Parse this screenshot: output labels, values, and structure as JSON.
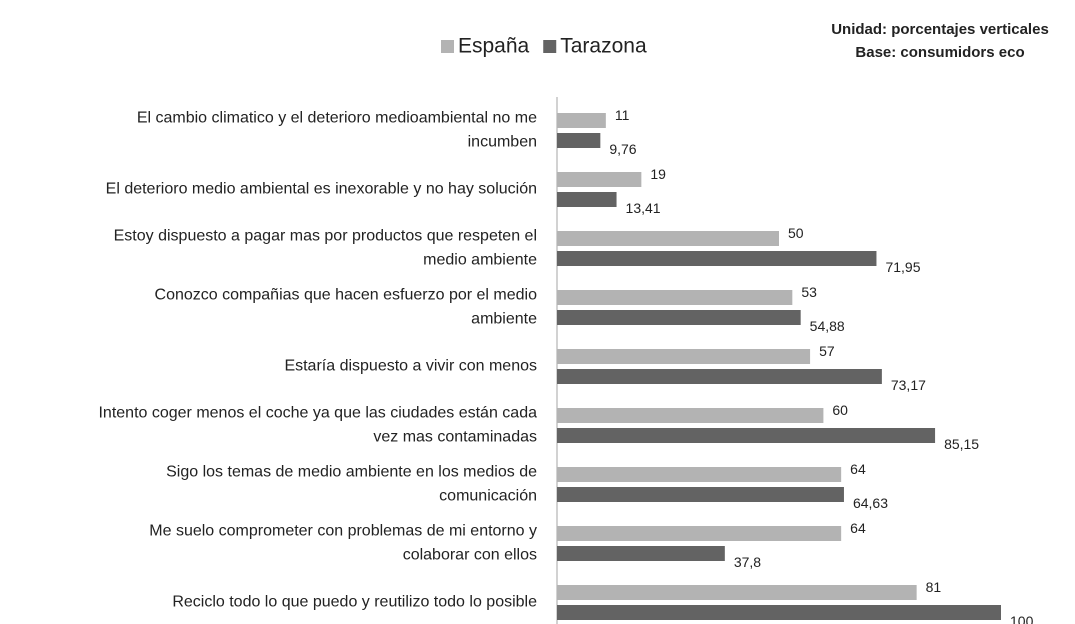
{
  "chart_data": {
    "type": "bar",
    "orientation": "horizontal",
    "annotations": [
      "Unidad: porcentajes verticales",
      "Base: consumidors eco"
    ],
    "categories": [
      [
        "El cambio climatico y el deterioro medioambiental no me",
        "incumben"
      ],
      [
        "El deterioro medio ambiental es inexorable y no hay solución"
      ],
      [
        "Estoy dispuesto a pagar mas por productos que respeten el",
        "medio ambiente"
      ],
      [
        "Conozco compañias que hacen esfuerzo por el medio",
        "ambiente"
      ],
      [
        "Estaría dispuesto a vivir con menos"
      ],
      [
        "Intento coger menos el coche ya que las ciudades están cada",
        "vez mas contaminadas"
      ],
      [
        "Sigo los temas de medio ambiente en los medios de",
        "comunicación"
      ],
      [
        "Me suelo comprometer con problemas de mi entorno y",
        "colaborar con ellos"
      ],
      [
        "Reciclo todo lo que puedo y reutilizo todo lo posible"
      ]
    ],
    "series": [
      {
        "name": "España",
        "color": "#b3b3b3",
        "values": [
          11,
          19,
          50,
          53,
          57,
          60,
          64,
          64,
          81
        ]
      },
      {
        "name": "Tarazona",
        "color": "#636363",
        "values": [
          9.76,
          13.41,
          71.95,
          54.88,
          73.17,
          85.15,
          64.63,
          37.8,
          100
        ],
        "value_labels": [
          "9,76",
          "13,41",
          "71,95",
          "54,88",
          "73,17",
          "85,15",
          "64,63",
          "37,8",
          "100"
        ]
      }
    ],
    "xlim": [
      0,
      100
    ],
    "legend": "top"
  }
}
